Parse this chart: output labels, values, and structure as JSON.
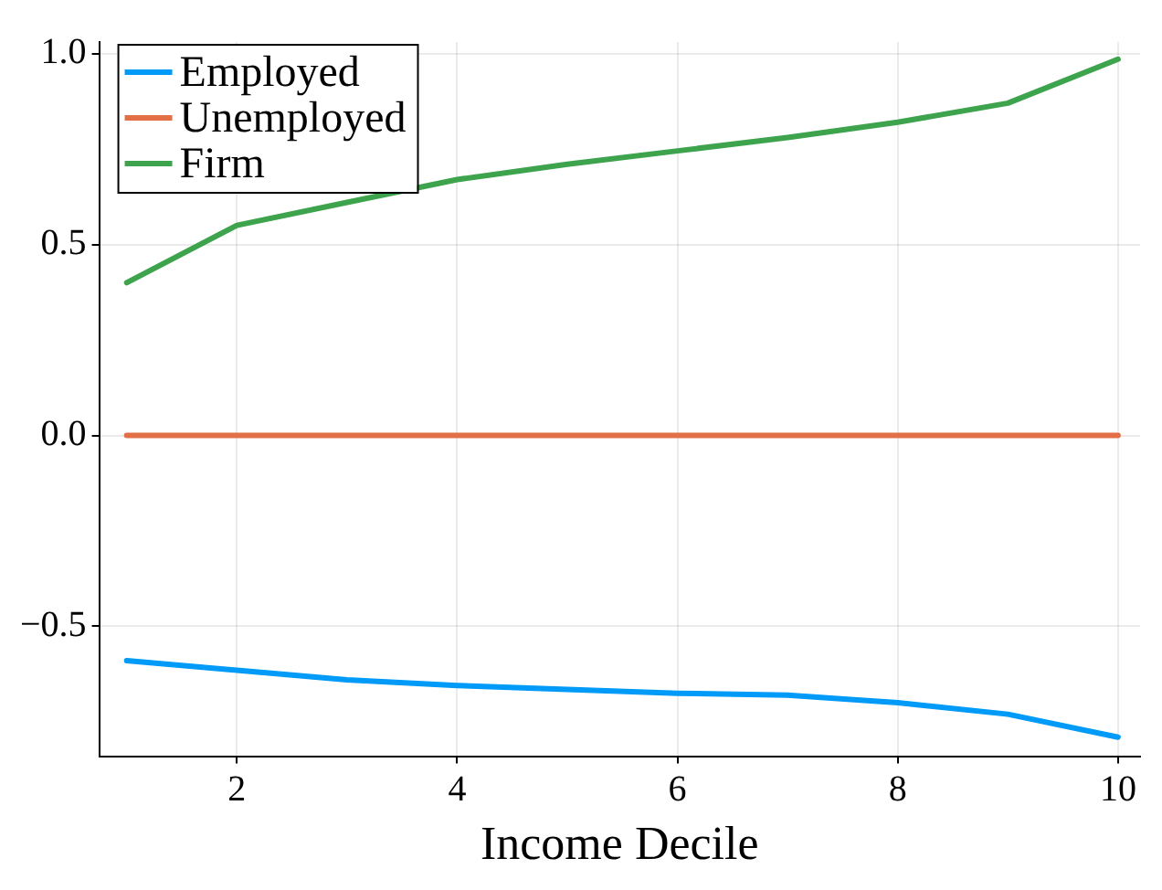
{
  "chart_data": {
    "type": "line",
    "xlabel": "Income Decile",
    "x": [
      1,
      2,
      3,
      4,
      5,
      6,
      7,
      8,
      9,
      10
    ],
    "series": [
      {
        "name": "Employed",
        "color": "#009af9",
        "values": [
          -0.59,
          -0.615,
          -0.64,
          -0.655,
          -0.665,
          -0.675,
          -0.68,
          -0.7,
          -0.73,
          -0.79
        ]
      },
      {
        "name": "Unemployed",
        "color": "#e26f46",
        "values": [
          0,
          0,
          0,
          0,
          0,
          0,
          0,
          0,
          0,
          0
        ]
      },
      {
        "name": "Firm",
        "color": "#3da44d",
        "values": [
          0.4,
          0.55,
          0.61,
          0.67,
          0.71,
          0.745,
          0.78,
          0.82,
          0.87,
          0.985
        ]
      }
    ],
    "xlim": [
      0.75,
      10.2
    ],
    "xticks": [
      2,
      4,
      6,
      8,
      10
    ],
    "ylim": [
      -0.84,
      1.03
    ],
    "yticks": [
      {
        "value": -0.5,
        "label": "−0.5"
      },
      {
        "value": 0,
        "label": "0.0"
      },
      {
        "value": 0.5,
        "label": "0.5"
      },
      {
        "value": 1,
        "label": "1.0"
      }
    ],
    "grid": true,
    "legend": "top left",
    "marker": "none",
    "line_style": "solid"
  }
}
